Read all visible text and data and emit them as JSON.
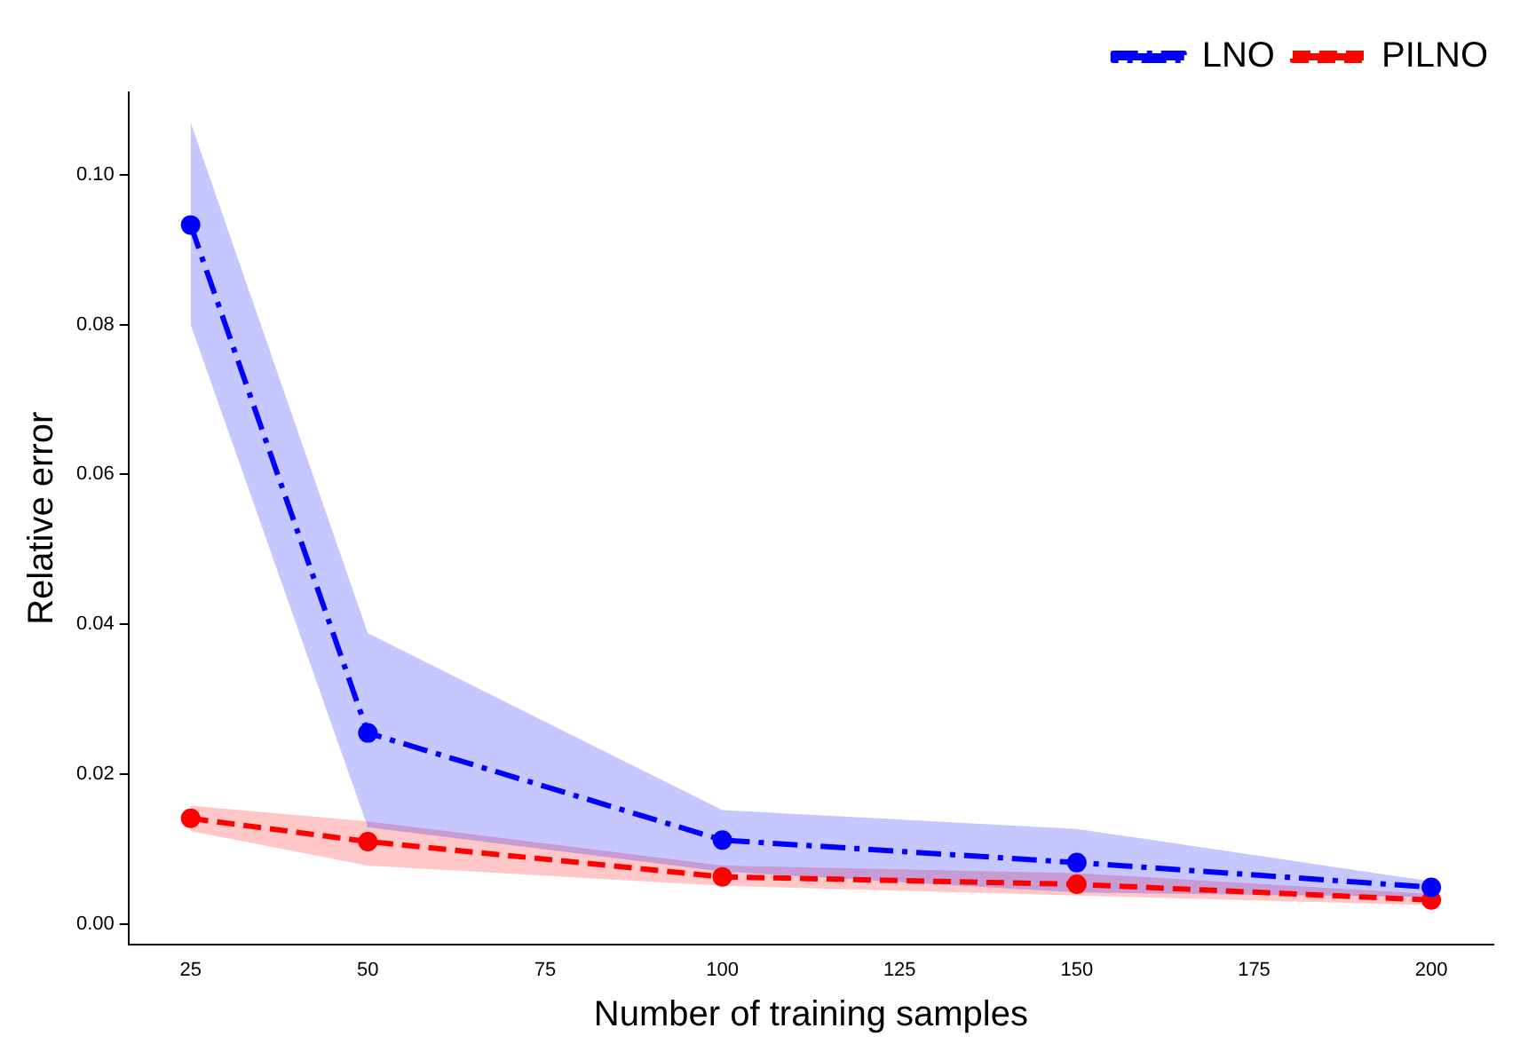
{
  "chart_data": {
    "type": "line",
    "xlabel": "Number of training samples",
    "ylabel": "Relative error",
    "x": [
      25,
      50,
      100,
      150,
      200
    ],
    "series": [
      {
        "name": "LNO",
        "color": "#0000ff",
        "line_style": "dashdot",
        "values": [
          0.0933,
          0.0255,
          0.0112,
          0.0082,
          0.0049
        ],
        "lower": [
          0.08,
          0.0129,
          0.007,
          0.0042,
          0.0036
        ],
        "upper": [
          0.107,
          0.0388,
          0.0152,
          0.0127,
          0.0057
        ]
      },
      {
        "name": "PILNO",
        "color": "#ff0000",
        "line_style": "dashed",
        "values": [
          0.0141,
          0.011,
          0.0063,
          0.0053,
          0.0032
        ],
        "lower": [
          0.0124,
          0.0078,
          0.0051,
          0.0038,
          0.0025
        ],
        "upper": [
          0.0158,
          0.0137,
          0.0078,
          0.0068,
          0.004
        ]
      }
    ],
    "xlim": [
      16.25,
      208.75
    ],
    "xticks": [
      25,
      50,
      75,
      100,
      125,
      150,
      175,
      200
    ],
    "ylim": [
      -0.0027,
      0.111
    ],
    "yticks": [
      {
        "value": 0,
        "label": "0.00"
      },
      {
        "value": 0.02,
        "label": "0.02"
      },
      {
        "value": 0.04,
        "label": "0.04"
      },
      {
        "value": 0.06,
        "label": "0.06"
      },
      {
        "value": 0.08,
        "label": "0.08"
      },
      {
        "value": 0.1,
        "label": "0.10"
      }
    ],
    "grid": false,
    "legend": "top right",
    "marker": "circle"
  }
}
